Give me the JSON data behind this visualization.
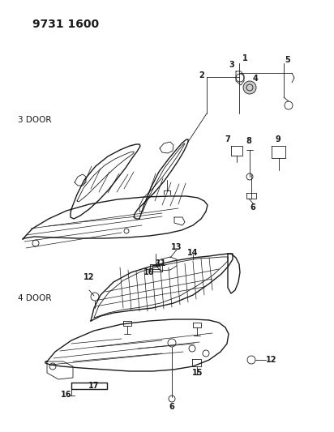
{
  "title": "9731 1600",
  "bg_color": "#ffffff",
  "text_color": "#1a1a1a",
  "label_3door": "3 DOOR",
  "label_4door": "4 DOOR",
  "fig_w": 4.12,
  "fig_h": 5.33,
  "dpi": 100
}
